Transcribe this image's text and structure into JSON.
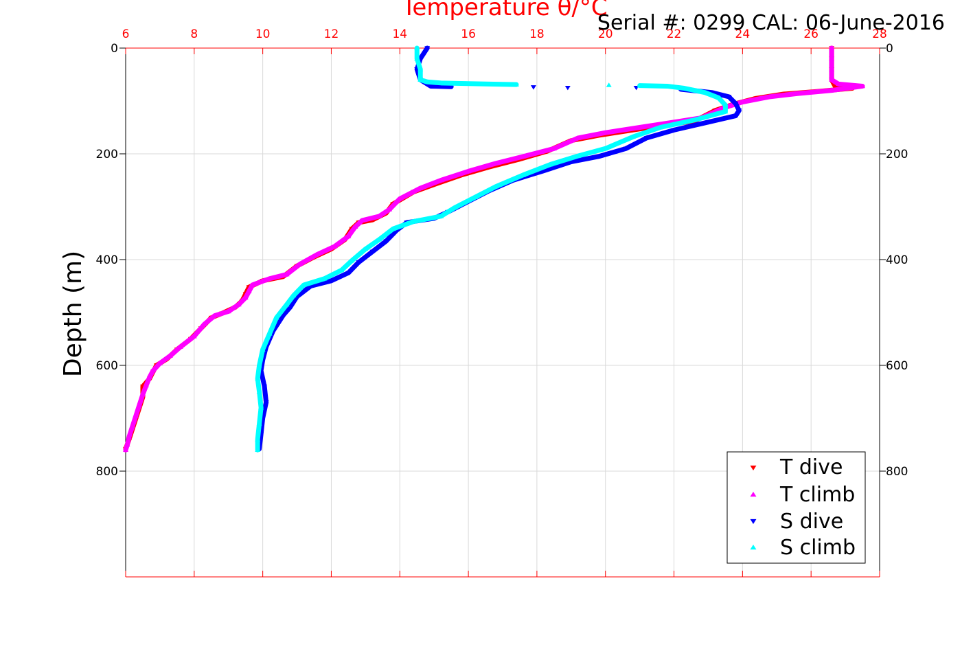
{
  "colors": {
    "t_dive": "#ff0000",
    "t_climb": "#ff00ff",
    "s_dive": "#0000ff",
    "s_climb": "#00ffff",
    "frame_top": "#ff0000",
    "grid": "#d9d9d9"
  },
  "chart_data": {
    "type": "scatter",
    "title": "Temperature θ/°C",
    "subtitle": "Serial #: 0299 CAL: 06-June-2016",
    "xlabel": "Temperature θ/°C",
    "ylabel": "Depth (m)",
    "xlim": [
      6,
      28
    ],
    "ylim": [
      0,
      1000
    ],
    "y_reversed": true,
    "grid": true,
    "legend_position": "bottom-right",
    "x_ticks": [
      "6",
      "8",
      "10",
      "12",
      "14",
      "16",
      "18",
      "20",
      "22",
      "24",
      "26",
      "28"
    ],
    "y_ticks": [
      "0",
      "200",
      "400",
      "600",
      "800"
    ],
    "series": [
      {
        "name": "T dive",
        "marker": "triangle-down",
        "color": "#ff0000",
        "points": [
          [
            26.6,
            0
          ],
          [
            26.6,
            20
          ],
          [
            26.6,
            40
          ],
          [
            26.6,
            60
          ],
          [
            26.7,
            72
          ],
          [
            27.2,
            76
          ],
          [
            26.2,
            82
          ],
          [
            25.2,
            87
          ],
          [
            24.4,
            95
          ],
          [
            23.8,
            105
          ],
          [
            23.2,
            118
          ],
          [
            22.6,
            138
          ],
          [
            21.8,
            145
          ],
          [
            20.8,
            155
          ],
          [
            19.8,
            165
          ],
          [
            19.0,
            175
          ],
          [
            18.3,
            195
          ],
          [
            17.5,
            210
          ],
          [
            16.6,
            225
          ],
          [
            15.8,
            240
          ],
          [
            15.0,
            258
          ],
          [
            14.4,
            272
          ],
          [
            13.8,
            295
          ],
          [
            13.6,
            312
          ],
          [
            13.2,
            325
          ],
          [
            12.8,
            330
          ],
          [
            12.6,
            342
          ],
          [
            12.4,
            362
          ],
          [
            12.0,
            380
          ],
          [
            11.5,
            395
          ],
          [
            11.0,
            412
          ],
          [
            10.6,
            432
          ],
          [
            10.0,
            440
          ],
          [
            9.6,
            452
          ],
          [
            9.5,
            465
          ],
          [
            9.4,
            478
          ],
          [
            9.2,
            490
          ],
          [
            8.8,
            502
          ],
          [
            8.5,
            510
          ],
          [
            8.2,
            530
          ],
          [
            7.9,
            550
          ],
          [
            7.5,
            570
          ],
          [
            7.2,
            588
          ],
          [
            6.9,
            600
          ],
          [
            6.8,
            612
          ],
          [
            6.7,
            625
          ],
          [
            6.5,
            640
          ],
          [
            6.5,
            660
          ],
          [
            6.4,
            680
          ],
          [
            6.3,
            700
          ],
          [
            6.2,
            720
          ],
          [
            6.1,
            740
          ],
          [
            6.0,
            758
          ]
        ]
      },
      {
        "name": "T climb",
        "marker": "triangle-up",
        "color": "#ff00ff",
        "points": [
          [
            26.6,
            0
          ],
          [
            26.6,
            20
          ],
          [
            26.6,
            40
          ],
          [
            26.6,
            60
          ],
          [
            26.8,
            68
          ],
          [
            27.5,
            72
          ],
          [
            26.6,
            80
          ],
          [
            25.6,
            86
          ],
          [
            24.8,
            92
          ],
          [
            24.0,
            102
          ],
          [
            23.5,
            112
          ],
          [
            22.8,
            132
          ],
          [
            22.0,
            140
          ],
          [
            21.0,
            150
          ],
          [
            20.0,
            160
          ],
          [
            19.2,
            170
          ],
          [
            18.5,
            190
          ],
          [
            17.6,
            205
          ],
          [
            16.8,
            218
          ],
          [
            16.0,
            233
          ],
          [
            15.2,
            250
          ],
          [
            14.6,
            265
          ],
          [
            14.0,
            285
          ],
          [
            13.7,
            305
          ],
          [
            13.4,
            318
          ],
          [
            12.9,
            326
          ],
          [
            12.7,
            338
          ],
          [
            12.5,
            356
          ],
          [
            12.1,
            375
          ],
          [
            11.6,
            390
          ],
          [
            11.1,
            408
          ],
          [
            10.7,
            428
          ],
          [
            10.2,
            436
          ],
          [
            9.7,
            448
          ],
          [
            9.6,
            460
          ],
          [
            9.5,
            472
          ],
          [
            9.3,
            485
          ],
          [
            9.0,
            498
          ],
          [
            8.6,
            506
          ],
          [
            8.3,
            522
          ],
          [
            8.0,
            545
          ],
          [
            7.6,
            565
          ],
          [
            7.3,
            582
          ],
          [
            7.0,
            596
          ],
          [
            6.8,
            610
          ],
          [
            6.7,
            622
          ],
          [
            6.6,
            638
          ],
          [
            6.5,
            655
          ],
          [
            6.4,
            675
          ],
          [
            6.3,
            695
          ],
          [
            6.2,
            715
          ],
          [
            6.1,
            735
          ],
          [
            6.05,
            750
          ],
          [
            6.0,
            760
          ]
        ]
      },
      {
        "name": "S dive",
        "marker": "triangle-down",
        "color": "#0000ff",
        "points": [
          [
            14.8,
            0
          ],
          [
            14.6,
            20
          ],
          [
            14.5,
            40
          ],
          [
            14.6,
            60
          ],
          [
            14.9,
            72
          ],
          [
            15.5,
            73
          ],
          [
            17.9,
            74
          ],
          [
            18.9,
            75
          ],
          [
            20.9,
            75
          ],
          [
            22.2,
            78
          ],
          [
            23.1,
            84
          ],
          [
            23.6,
            92
          ],
          [
            23.8,
            105
          ],
          [
            23.9,
            118
          ],
          [
            23.8,
            128
          ],
          [
            23.0,
            140
          ],
          [
            22.0,
            155
          ],
          [
            21.2,
            170
          ],
          [
            20.6,
            190
          ],
          [
            19.8,
            205
          ],
          [
            19.0,
            215
          ],
          [
            18.2,
            232
          ],
          [
            17.3,
            250
          ],
          [
            16.6,
            270
          ],
          [
            16.0,
            290
          ],
          [
            15.4,
            310
          ],
          [
            15.0,
            322
          ],
          [
            14.2,
            330
          ],
          [
            13.9,
            345
          ],
          [
            13.6,
            365
          ],
          [
            13.2,
            385
          ],
          [
            12.8,
            405
          ],
          [
            12.5,
            425
          ],
          [
            12.0,
            440
          ],
          [
            11.4,
            450
          ],
          [
            11.0,
            470
          ],
          [
            10.8,
            490
          ],
          [
            10.6,
            505
          ],
          [
            10.3,
            535
          ],
          [
            10.1,
            565
          ],
          [
            10.0,
            590
          ],
          [
            9.95,
            610
          ],
          [
            10.05,
            640
          ],
          [
            10.1,
            670
          ],
          [
            10.0,
            700
          ],
          [
            9.95,
            730
          ],
          [
            9.9,
            758
          ]
        ]
      },
      {
        "name": "S climb",
        "marker": "triangle-up",
        "color": "#00ffff",
        "points": [
          [
            14.5,
            0
          ],
          [
            14.5,
            20
          ],
          [
            14.6,
            40
          ],
          [
            14.6,
            60
          ],
          [
            14.8,
            64
          ],
          [
            15.2,
            66
          ],
          [
            15.9,
            67
          ],
          [
            16.6,
            68
          ],
          [
            17.4,
            69
          ],
          [
            20.1,
            70
          ],
          [
            21.0,
            71
          ],
          [
            21.8,
            72
          ],
          [
            22.3,
            76
          ],
          [
            22.9,
            84
          ],
          [
            23.3,
            94
          ],
          [
            23.5,
            108
          ],
          [
            23.5,
            120
          ],
          [
            22.6,
            136
          ],
          [
            21.6,
            150
          ],
          [
            20.8,
            168
          ],
          [
            20.0,
            190
          ],
          [
            19.2,
            204
          ],
          [
            18.4,
            220
          ],
          [
            17.6,
            240
          ],
          [
            16.8,
            262
          ],
          [
            16.2,
            282
          ],
          [
            15.6,
            302
          ],
          [
            15.2,
            318
          ],
          [
            14.4,
            328
          ],
          [
            13.8,
            342
          ],
          [
            13.4,
            362
          ],
          [
            13.0,
            380
          ],
          [
            12.6,
            402
          ],
          [
            12.3,
            420
          ],
          [
            11.8,
            436
          ],
          [
            11.2,
            448
          ],
          [
            10.9,
            468
          ],
          [
            10.7,
            485
          ],
          [
            10.4,
            510
          ],
          [
            10.2,
            540
          ],
          [
            10.0,
            570
          ],
          [
            9.9,
            600
          ],
          [
            9.85,
            625
          ],
          [
            9.9,
            650
          ],
          [
            9.95,
            680
          ],
          [
            9.9,
            710
          ],
          [
            9.85,
            740
          ],
          [
            9.85,
            760
          ]
        ]
      }
    ]
  }
}
